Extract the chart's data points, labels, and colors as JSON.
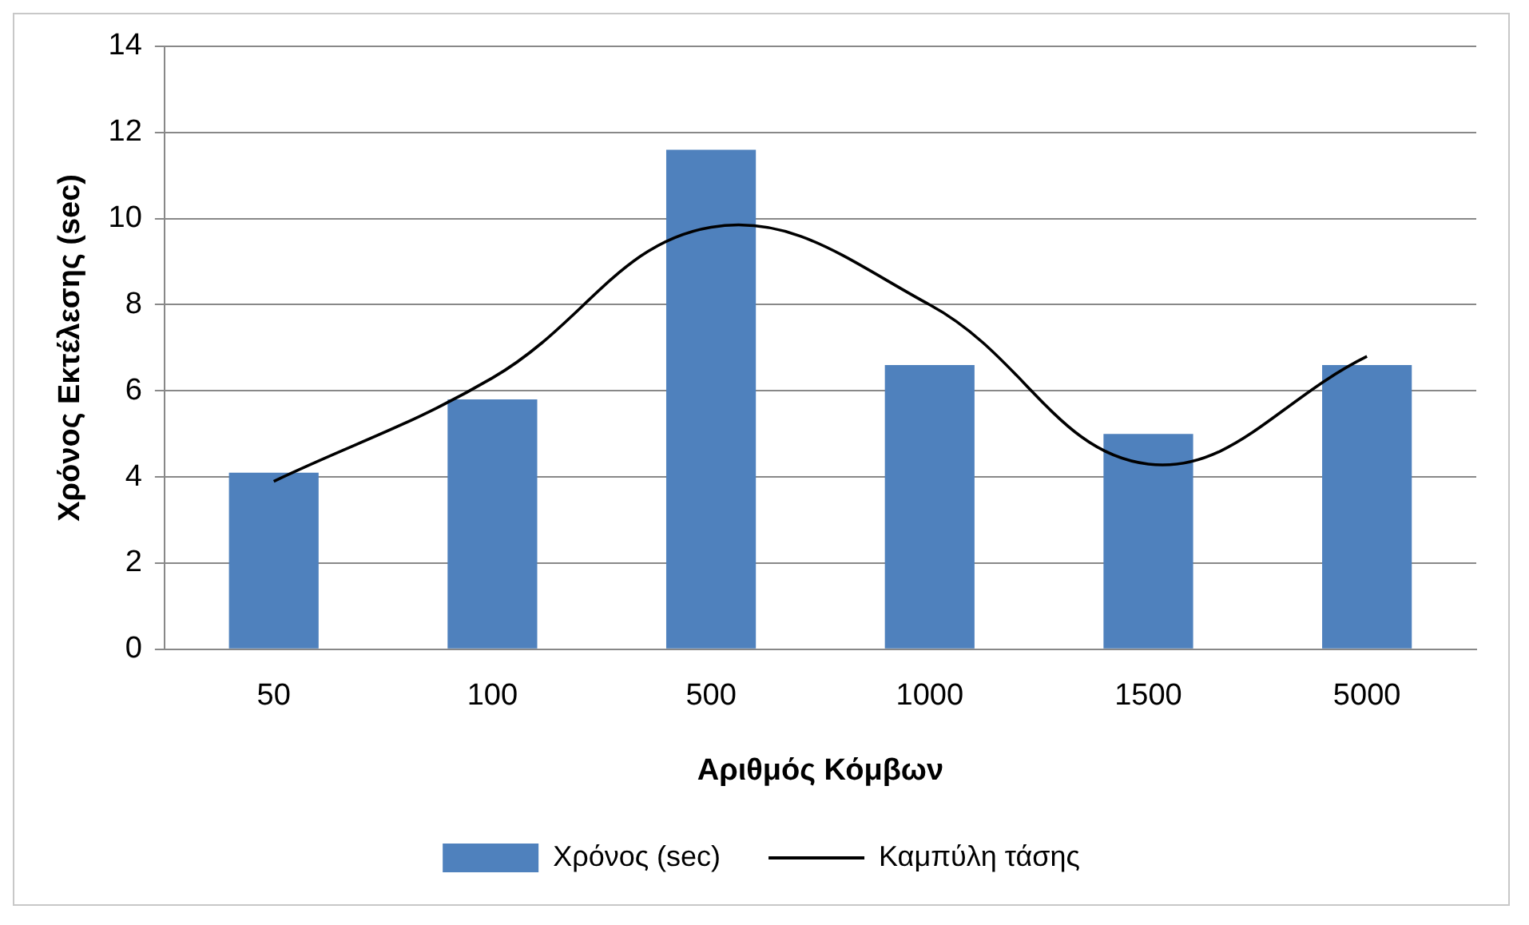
{
  "chart_data": {
    "type": "bar",
    "xlabel": "Αριθμός Κόμβων",
    "ylabel": "Χρόνος Εκτέλεσης (sec)",
    "categories": [
      "50",
      "100",
      "500",
      "1000",
      "1500",
      "5000"
    ],
    "series": [
      {
        "name": "Χρόνος (sec)",
        "color": "#4f81bd",
        "values": [
          4.1,
          5.8,
          11.6,
          6.6,
          5.0,
          6.6
        ]
      },
      {
        "name": "Καμπύλη τάσης",
        "type": "line",
        "color": "#000000",
        "values": [
          3.9,
          6.3,
          9.8,
          8.0,
          4.3,
          6.8
        ]
      }
    ],
    "ylim": [
      0,
      14
    ],
    "yticks": [
      0,
      2,
      4,
      6,
      8,
      10,
      12,
      14
    ],
    "grid": "y",
    "legend": "bottom",
    "marker": "none"
  }
}
